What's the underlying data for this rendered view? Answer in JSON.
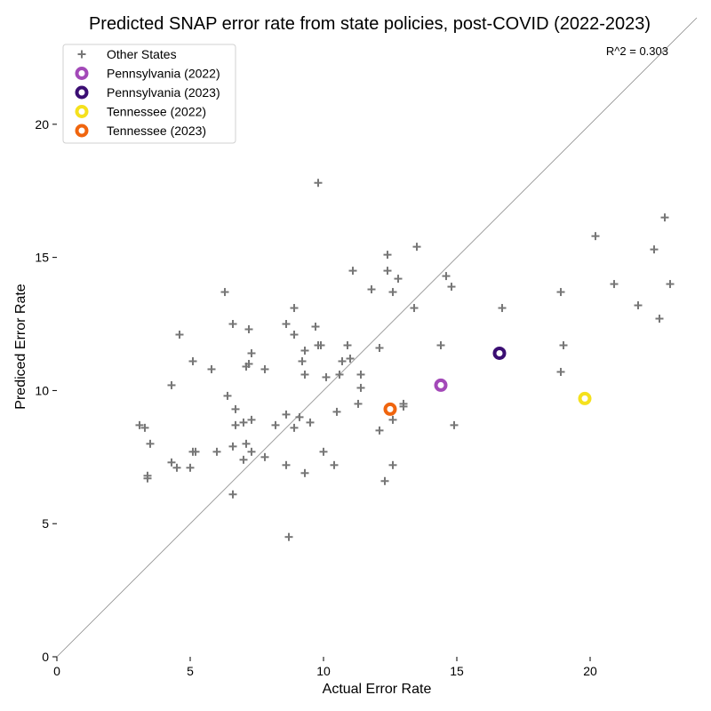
{
  "chart_data": {
    "type": "scatter",
    "title": "Predicted SNAP error rate from state policies, post-COVID (2022-2023)",
    "xlabel": "Actual Error Rate",
    "ylabel": "Prediced Error Rate",
    "xlim": [
      0,
      24
    ],
    "ylim": [
      0,
      24
    ],
    "xticks": [
      0,
      5,
      10,
      15,
      20
    ],
    "yticks": [
      0,
      5,
      10,
      15,
      20
    ],
    "grid": false,
    "legend_position": "top-left",
    "annotation": "R^2 = 0.303",
    "reference_line": "y = x",
    "series": [
      {
        "name": "Other States",
        "marker": "plus",
        "color": "#777777",
        "points": [
          [
            3.1,
            8.7
          ],
          [
            3.3,
            8.6
          ],
          [
            3.5,
            8.0
          ],
          [
            3.4,
            6.8
          ],
          [
            3.4,
            6.7
          ],
          [
            4.3,
            7.3
          ],
          [
            4.3,
            10.2
          ],
          [
            4.6,
            12.1
          ],
          [
            4.5,
            7.1
          ],
          [
            5.0,
            7.1
          ],
          [
            5.1,
            7.7
          ],
          [
            5.2,
            7.7
          ],
          [
            5.1,
            11.1
          ],
          [
            5.8,
            10.8
          ],
          [
            6.0,
            7.7
          ],
          [
            6.3,
            13.7
          ],
          [
            6.4,
            9.8
          ],
          [
            6.6,
            12.5
          ],
          [
            6.6,
            6.1
          ],
          [
            6.7,
            9.3
          ],
          [
            6.7,
            8.7
          ],
          [
            6.6,
            7.9
          ],
          [
            7.0,
            8.8
          ],
          [
            7.0,
            7.4
          ],
          [
            7.1,
            10.9
          ],
          [
            7.2,
            11.0
          ],
          [
            7.1,
            8.0
          ],
          [
            7.2,
            12.3
          ],
          [
            7.3,
            11.4
          ],
          [
            7.3,
            7.7
          ],
          [
            7.3,
            8.9
          ],
          [
            7.8,
            7.5
          ],
          [
            7.8,
            10.8
          ],
          [
            8.2,
            8.7
          ],
          [
            8.6,
            12.5
          ],
          [
            8.6,
            9.1
          ],
          [
            8.6,
            7.2
          ],
          [
            8.7,
            4.5
          ],
          [
            8.9,
            13.1
          ],
          [
            8.9,
            12.1
          ],
          [
            8.9,
            8.6
          ],
          [
            9.1,
            9.0
          ],
          [
            9.2,
            11.1
          ],
          [
            9.3,
            11.5
          ],
          [
            9.3,
            10.6
          ],
          [
            9.3,
            6.9
          ],
          [
            9.5,
            8.8
          ],
          [
            9.7,
            12.4
          ],
          [
            9.8,
            11.7
          ],
          [
            9.9,
            11.7
          ],
          [
            9.8,
            17.8
          ],
          [
            10.0,
            7.7
          ],
          [
            10.1,
            10.5
          ],
          [
            10.4,
            7.2
          ],
          [
            10.5,
            9.2
          ],
          [
            10.6,
            10.6
          ],
          [
            10.7,
            11.1
          ],
          [
            10.9,
            11.7
          ],
          [
            11.0,
            11.2
          ],
          [
            11.1,
            14.5
          ],
          [
            11.3,
            9.5
          ],
          [
            11.4,
            10.1
          ],
          [
            11.4,
            10.6
          ],
          [
            11.8,
            13.8
          ],
          [
            12.1,
            11.6
          ],
          [
            12.1,
            8.5
          ],
          [
            12.3,
            6.6
          ],
          [
            12.4,
            15.1
          ],
          [
            12.4,
            14.5
          ],
          [
            12.6,
            13.7
          ],
          [
            12.6,
            7.2
          ],
          [
            12.6,
            8.9
          ],
          [
            12.8,
            14.2
          ],
          [
            13.0,
            9.5
          ],
          [
            13.0,
            9.4
          ],
          [
            13.4,
            13.1
          ],
          [
            13.5,
            15.4
          ],
          [
            14.4,
            11.7
          ],
          [
            14.6,
            14.3
          ],
          [
            14.8,
            13.9
          ],
          [
            14.9,
            8.7
          ],
          [
            16.7,
            13.1
          ],
          [
            18.9,
            13.7
          ],
          [
            18.9,
            10.7
          ],
          [
            19.0,
            11.7
          ],
          [
            20.2,
            15.8
          ],
          [
            20.9,
            14.0
          ],
          [
            21.8,
            13.2
          ],
          [
            22.4,
            15.3
          ],
          [
            22.6,
            12.7
          ],
          [
            22.8,
            16.5
          ],
          [
            23.0,
            14.0
          ]
        ]
      },
      {
        "name": "Pennsylvania (2022)",
        "marker": "ring",
        "color": "#a349b8",
        "points": [
          [
            14.4,
            10.2
          ]
        ]
      },
      {
        "name": "Pennsylvania (2023)",
        "marker": "ring",
        "color": "#3b0e73",
        "points": [
          [
            16.6,
            11.4
          ]
        ]
      },
      {
        "name": "Tennessee (2022)",
        "marker": "ring",
        "color": "#f5e11d",
        "points": [
          [
            19.8,
            9.7
          ]
        ]
      },
      {
        "name": "Tennessee (2023)",
        "marker": "ring",
        "color": "#f0650e",
        "points": [
          [
            12.5,
            9.3
          ]
        ]
      }
    ]
  }
}
